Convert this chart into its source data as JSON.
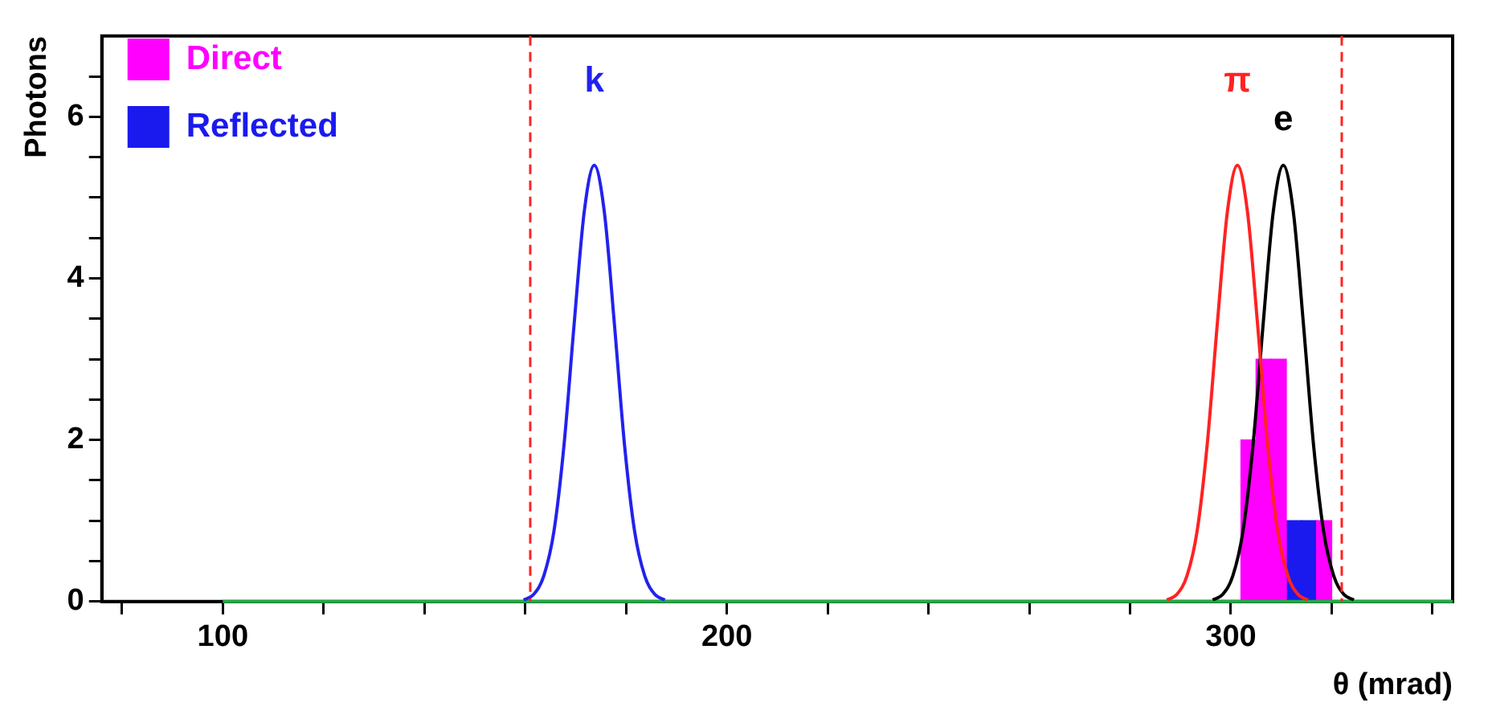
{
  "chart_data": {
    "type": "line",
    "xlabel": "θ (mrad)",
    "ylabel": "Photons",
    "xlim": [
      76,
      344
    ],
    "ylim": [
      0,
      7
    ],
    "xticks": [
      {
        "value": 80,
        "label": null
      },
      100,
      {
        "value": 120,
        "label": null
      },
      {
        "value": 140,
        "label": null
      },
      {
        "value": 160,
        "label": null
      },
      {
        "value": 180,
        "label": null
      },
      200,
      {
        "value": 220,
        "label": null
      },
      {
        "value": 240,
        "label": null
      },
      {
        "value": 260,
        "label": null
      },
      {
        "value": 280,
        "label": null
      },
      300,
      {
        "value": 320,
        "label": null
      },
      {
        "value": 340,
        "label": null
      }
    ],
    "yticks": [
      0,
      {
        "value": 0.5,
        "label": null
      },
      {
        "value": 1,
        "label": null
      },
      {
        "value": 1.5,
        "label": null
      },
      2,
      {
        "value": 2.5,
        "label": null
      },
      {
        "value": 3,
        "label": null
      },
      {
        "value": 3.5,
        "label": null
      },
      4,
      {
        "value": 4.5,
        "label": null
      },
      {
        "value": 5,
        "label": null
      },
      {
        "value": 5.5,
        "label": null
      },
      6,
      {
        "value": 6.5,
        "label": null
      }
    ],
    "grid": false,
    "legend": "top left",
    "marker": "none",
    "series": [
      {
        "color": "#2222ee",
        "x": [
          159.7,
          161.7,
          163.7,
          165.7,
          167.7,
          169.7,
          171.7,
          173.7,
          175.7,
          177.7,
          179.7,
          181.7,
          183.7,
          185.7,
          187.7
        ],
        "values": [
          0.02,
          0.09,
          0.32,
          0.87,
          1.94,
          3.43,
          4.82,
          5.4,
          4.82,
          3.43,
          1.94,
          0.87,
          0.32,
          0.09,
          0.02
        ]
      },
      {
        "color": "#ff2222",
        "x": [
          287.3,
          289.3,
          291.3,
          293.3,
          295.3,
          297.3,
          299.3,
          301.3,
          303.3,
          305.3,
          307.3,
          309.3,
          311.3,
          313.3,
          315.3
        ],
        "values": [
          0.02,
          0.09,
          0.32,
          0.87,
          1.94,
          3.43,
          4.82,
          5.4,
          4.82,
          3.43,
          1.94,
          0.87,
          0.32,
          0.09,
          0.02
        ]
      },
      {
        "color": "#000000",
        "x": [
          296.4,
          298.4,
          300.4,
          302.4,
          304.4,
          306.4,
          308.4,
          310.4,
          312.4,
          314.4,
          316.4,
          318.4,
          320.4,
          322.4,
          324.4
        ],
        "values": [
          0.02,
          0.09,
          0.32,
          0.87,
          1.94,
          3.43,
          4.82,
          5.4,
          4.82,
          3.43,
          1.94,
          0.87,
          0.32,
          0.09,
          0.02
        ]
      },
      {
        "color": "#22aa44",
        "x": [
          100,
          344
        ],
        "values": [
          0,
          0
        ]
      },
      {
        "type": "histogram",
        "name": "Direct",
        "color": "#ff00ff",
        "bins": [
          302,
          305,
          308,
          311,
          314,
          317,
          320
        ],
        "values": [
          2,
          3,
          3,
          null,
          null,
          1
        ]
      },
      {
        "type": "histogram",
        "name": "Reflected",
        "color": "#1a1aee",
        "bins": [
          302,
          305,
          308,
          311,
          314,
          317,
          320
        ],
        "values": [
          null,
          null,
          null,
          1,
          1,
          null
        ]
      }
    ],
    "ref_lines": [
      {
        "axis": "x",
        "value": 161,
        "color": "#ff2222",
        "line_style": "dashed"
      },
      {
        "axis": "x",
        "value": 322,
        "color": "#ff2222",
        "line_style": "dashed"
      }
    ],
    "annotations": [
      {
        "text": "k",
        "x": 173.7,
        "y": 5.4
      },
      {
        "text": "π",
        "x": 301.3,
        "y": 5.4
      },
      {
        "text": "e",
        "x": 310.4,
        "y": 5.4
      }
    ]
  }
}
